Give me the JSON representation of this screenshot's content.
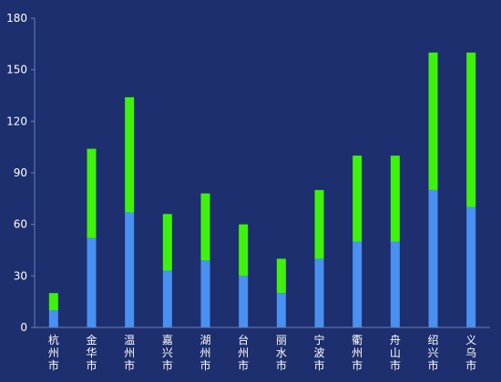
{
  "chart_data": {
    "type": "bar",
    "stacked": true,
    "categories": [
      "杭州市",
      "金华市",
      "温州市",
      "嘉兴市",
      "湖州市",
      "台州市",
      "丽水市",
      "宁波市",
      "衢州市",
      "舟山市",
      "绍兴市",
      "义乌市"
    ],
    "series": [
      {
        "color": "#4a90f0",
        "values": [
          10,
          52,
          67,
          33,
          39,
          30,
          20,
          40,
          50,
          50,
          80,
          70
        ]
      },
      {
        "color": "#3ff20d",
        "values": [
          10,
          52,
          67,
          33,
          39,
          30,
          20,
          40,
          50,
          50,
          80,
          90
        ]
      }
    ],
    "yticks": [
      0,
      30,
      60,
      90,
      120,
      150,
      180
    ],
    "ylim": [
      0,
      180
    ],
    "grid": false,
    "axis_color": "#6b7fb8",
    "label_color": "#ffffff"
  }
}
